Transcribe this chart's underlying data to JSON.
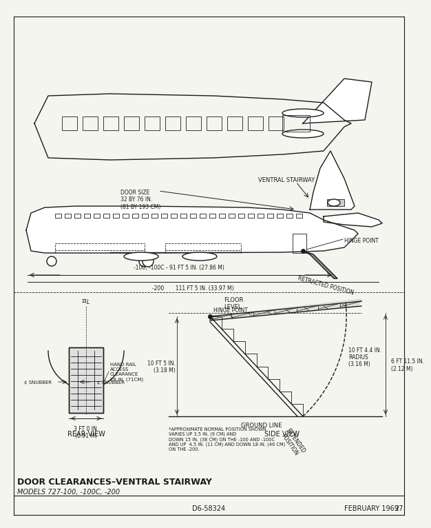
{
  "bg_color": "#f5f5f0",
  "line_color": "#1a1a1a",
  "title": "DOOR CLEARANCES–VENTRAL STAIRWAY",
  "subtitle": "MODELS 727-100, -100C, -200",
  "doc_number": "D6-58324",
  "date": "FEBRUARY 1969",
  "page": "27",
  "annotations": {
    "door_size": "DOOR SIZE\n32 BY 76 IN.\n(81 BY 193 CM)",
    "ventral_stairway": "VENTRAL STAIRWAY",
    "hinge_point": "HINGE POINT",
    "dim_100": "-100, -100C - 91 FT 5 IN. (27.86 M)",
    "dim_200": "-200       111 FT 5 IN. (33.97 M)",
    "floor_level": "FLOOR\nLEVEL",
    "hinge_point_sv": "HINGE POINT",
    "retracted": "RETRACTED POSITION",
    "extended": "EXTENDED\nPOSITION",
    "radius_label": "10 FT 4.4 IN.\nRADIUS\n(3.16 M)",
    "dim_10ft5": "10 FT 5 IN.\n(3.18 M)",
    "ground_line": "GROUND LINE",
    "handrail": "HAND RAIL\nACCESS\nCLEARANCE\n28 IN. (71CM)",
    "snubber_left": "¢ SNUBBER",
    "snubber_right": "¢ SNUBBER",
    "cl_label": "¢ₗ",
    "width_3ft": "3 FT 0 IN.\n(0.91 M)",
    "height_6ft": "6 FT 11.5 IN.\n(2.12 M)",
    "rear_view": "REAR VIEW",
    "side_view": "SIDE VIEW",
    "approx_note": "*APPROXIMATE NORMAL POSITION SHOWN\nVARIES UP 3.5 IN. (9 CM) AND\nDOWN 15 IN. (38 CM) ON THE -100 AND -100C\nAND UP  4.5 IN. (11 CM) AND DOWN 18 IN. (46 CM)\nON THE -200."
  }
}
